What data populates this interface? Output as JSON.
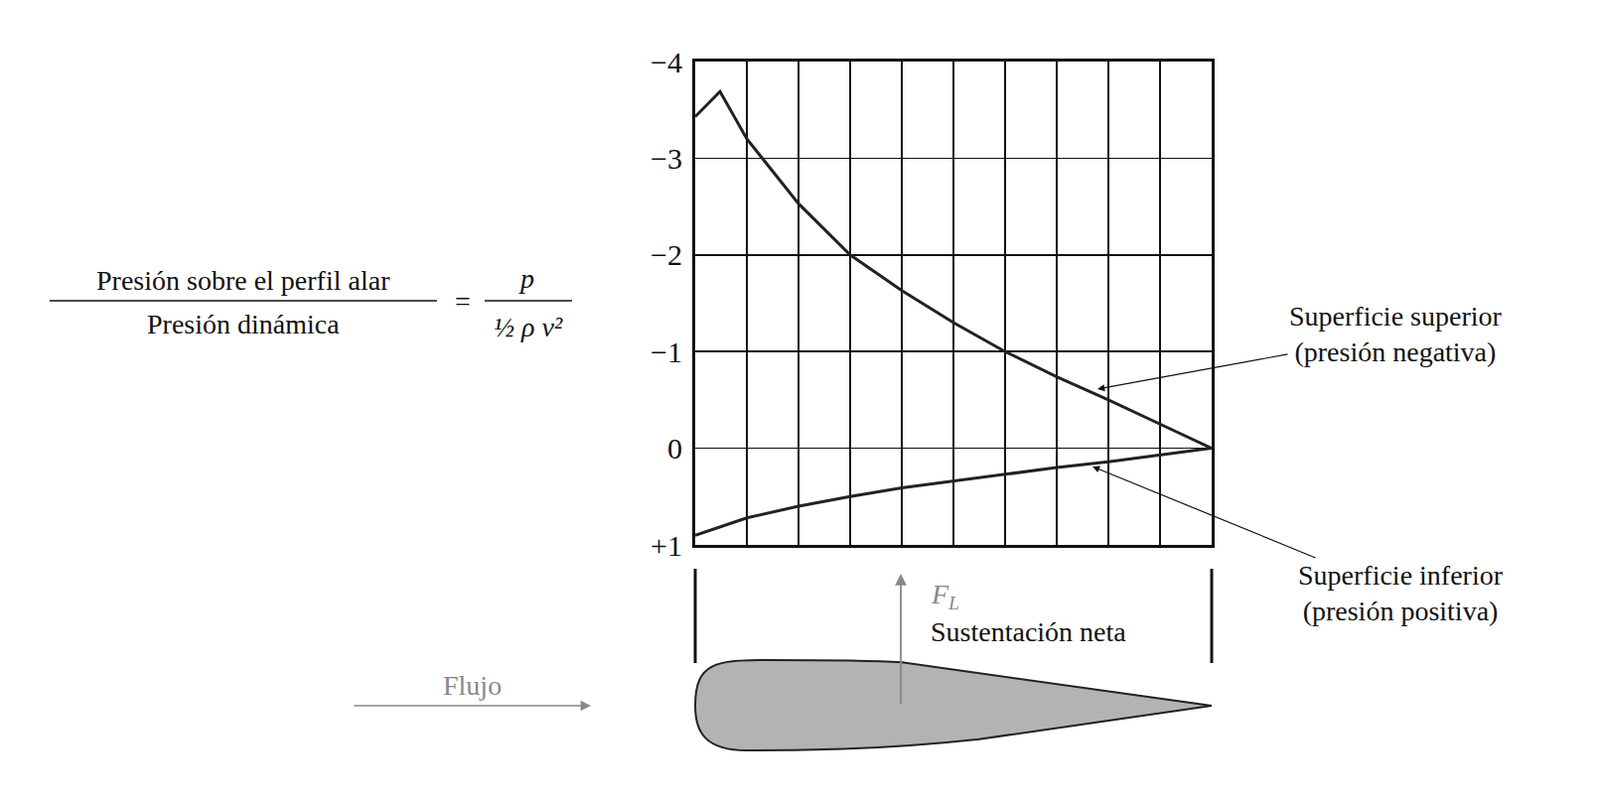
{
  "chart_data": {
    "type": "line",
    "series": [
      {
        "name": "Superficie superior (presión negativa)",
        "color": "#222222",
        "x": [
          0,
          0.048,
          0.1,
          0.2,
          0.3,
          0.4,
          0.5,
          0.6,
          0.7,
          0.8,
          0.9,
          1.0
        ],
        "values": [
          -3.43,
          -3.69,
          -3.2,
          -2.53,
          -2.0,
          -1.63,
          -1.3,
          -1.0,
          -0.74,
          -0.5,
          -0.25,
          0
        ]
      },
      {
        "name": "Superficie inferior (presión positiva)",
        "color": "#222222",
        "x": [
          0,
          0.1,
          0.2,
          0.3,
          0.4,
          0.5,
          0.6,
          0.7,
          0.8,
          0.9,
          1.0
        ],
        "values": [
          0.9,
          0.72,
          0.6,
          0.5,
          0.41,
          0.34,
          0.27,
          0.2,
          0.14,
          0.07,
          0
        ]
      }
    ],
    "xlim": [
      0,
      1
    ],
    "xticks": [
      0,
      0.1,
      0.2,
      0.3,
      0.4,
      0.5,
      0.6,
      0.7,
      0.8,
      0.9,
      1.0
    ],
    "ylim": [
      1,
      -4
    ],
    "yticks": [
      {
        "value": -4,
        "label": "−4"
      },
      {
        "value": -3,
        "label": "−3"
      },
      {
        "value": -2,
        "label": "−2"
      },
      {
        "value": -1,
        "label": "−1"
      },
      0,
      {
        "value": 1,
        "label": "+1"
      }
    ],
    "grid": true,
    "tick_labels": "y",
    "annotations": {
      "formula": {
        "numerator": "Presión sobre el perfil alar",
        "denominator": "Presión dinámica",
        "equals": "=",
        "symbol_numerator": "p",
        "symbol_denominator": "½ ρ v²"
      },
      "lift": {
        "symbol": "F",
        "subscript": "L",
        "text": "Sustentación neta"
      },
      "flow": "Flujo"
    }
  }
}
